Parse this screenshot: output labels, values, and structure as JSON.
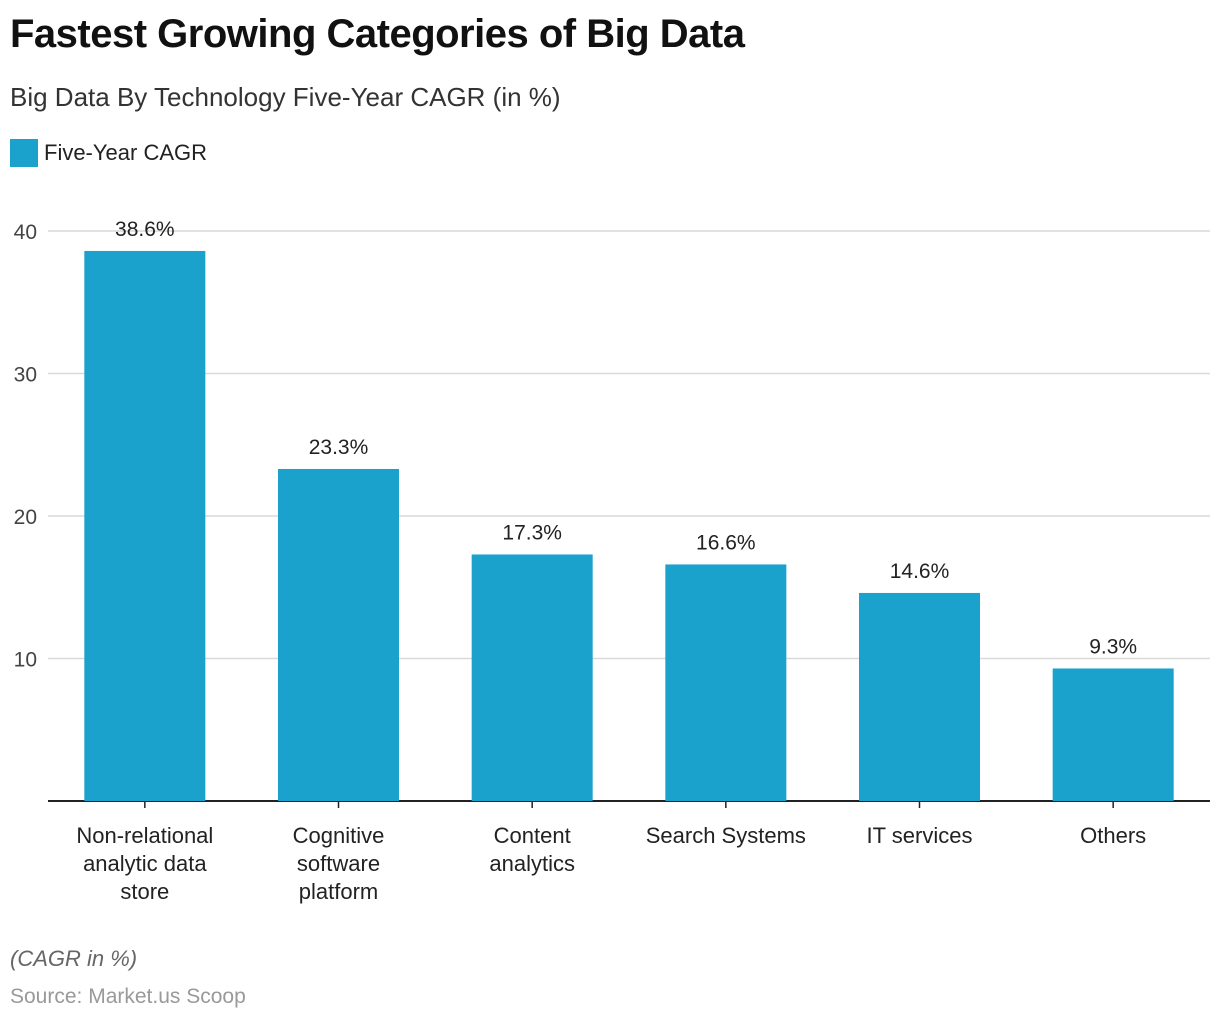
{
  "colors": {
    "bar": "#1aa1cc",
    "grid": "#d9d9d9",
    "axis": "#222222"
  },
  "chart_data": {
    "type": "bar",
    "title": "Fastest Growing Categories of Big Data",
    "subtitle": "Big Data By Technology Five-Year CAGR (in %)",
    "categories": [
      "Non-relational analytic data store",
      "Cognitive software platform",
      "Content analytics",
      "Search Systems",
      "IT services",
      "Others"
    ],
    "category_lines": [
      [
        "Non-relational",
        "analytic data",
        "store"
      ],
      [
        "Cognitive",
        "software",
        "platform"
      ],
      [
        "Content",
        "analytics"
      ],
      [
        "Search Systems"
      ],
      [
        "IT services"
      ],
      [
        "Others"
      ]
    ],
    "series": [
      {
        "name": "Five-Year CAGR",
        "values": [
          38.6,
          23.3,
          17.3,
          16.6,
          14.6,
          9.3
        ]
      }
    ],
    "data_labels": [
      "38.6%",
      "23.3%",
      "17.3%",
      "16.6%",
      "14.6%",
      "9.3%"
    ],
    "ylim": [
      0,
      40
    ],
    "yticks": [
      10,
      20,
      30,
      40
    ],
    "grid": true,
    "legend_position": "top-left"
  },
  "footer": {
    "note": "(CAGR in %)",
    "source": "Source: Market.us Scoop"
  }
}
